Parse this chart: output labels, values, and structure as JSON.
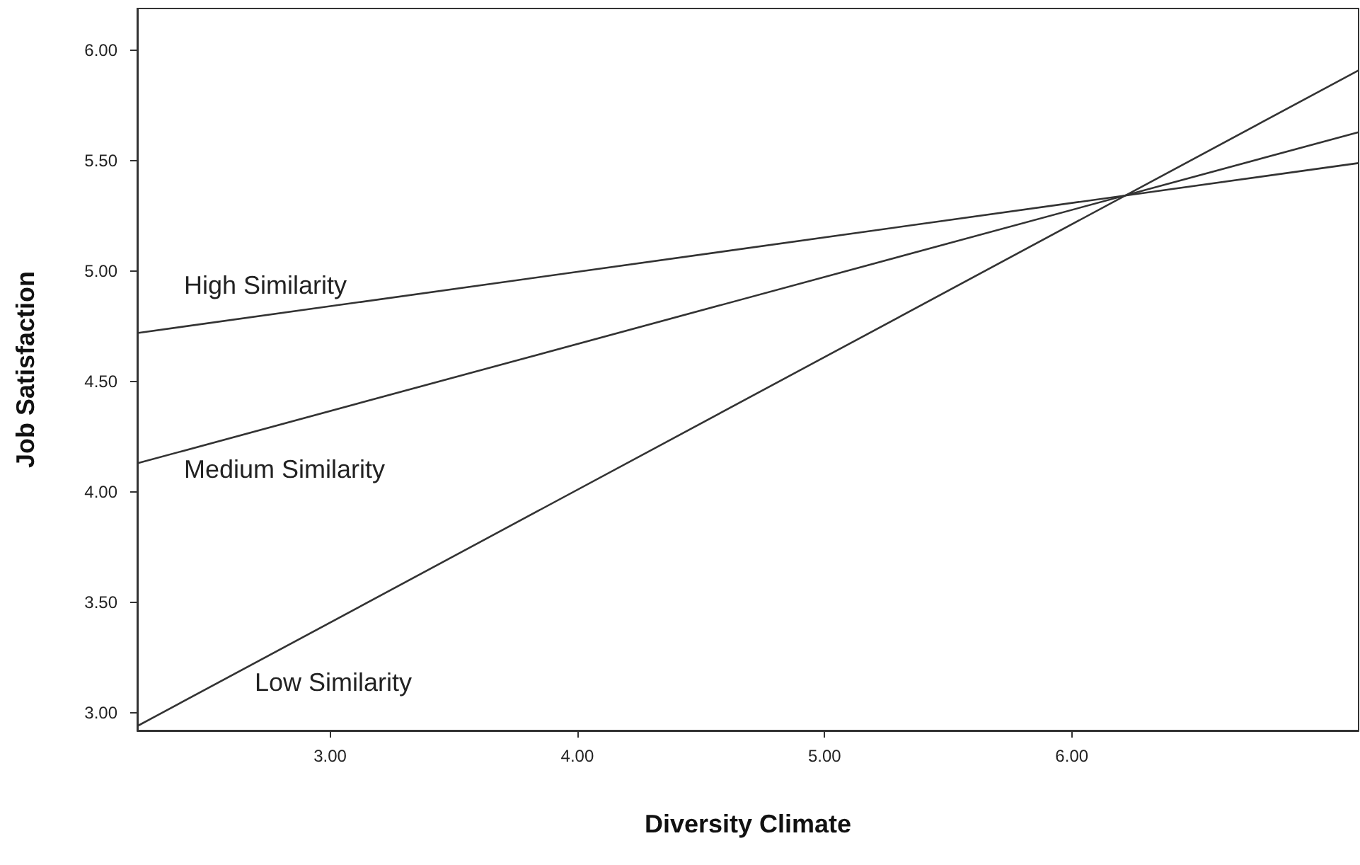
{
  "chart_data": {
    "type": "line",
    "xlabel": "Diversity Climate",
    "ylabel": "Job Satisfaction",
    "xlim": [
      2.22,
      7.16
    ],
    "ylim": [
      2.92,
      6.19
    ],
    "xticks": [
      {
        "value": 3,
        "label": "3.00"
      },
      {
        "value": 4,
        "label": "4.00"
      },
      {
        "value": 5,
        "label": "5.00"
      },
      {
        "value": 6,
        "label": "6.00"
      }
    ],
    "yticks": [
      {
        "value": 3,
        "label": "3.00"
      },
      {
        "value": 3.5,
        "label": "3.50"
      },
      {
        "value": 4,
        "label": "4.00"
      },
      {
        "value": 4.5,
        "label": "4.50"
      },
      {
        "value": 5,
        "label": "5.00"
      },
      {
        "value": 5.5,
        "label": "5.50"
      },
      {
        "value": 6,
        "label": "6.00"
      }
    ],
    "x": [
      2.22,
      7.16
    ],
    "series": [
      {
        "name": "High Similarity",
        "color": "#333333",
        "values": [
          4.72,
          5.49
        ]
      },
      {
        "name": "Medium Similarity",
        "color": "#333333",
        "values": [
          4.13,
          5.63
        ]
      },
      {
        "name": "Low Similarity",
        "color": "#333333",
        "values": [
          2.94,
          5.91
        ]
      }
    ],
    "grid": false,
    "marker": "none",
    "line_style": "solid"
  }
}
